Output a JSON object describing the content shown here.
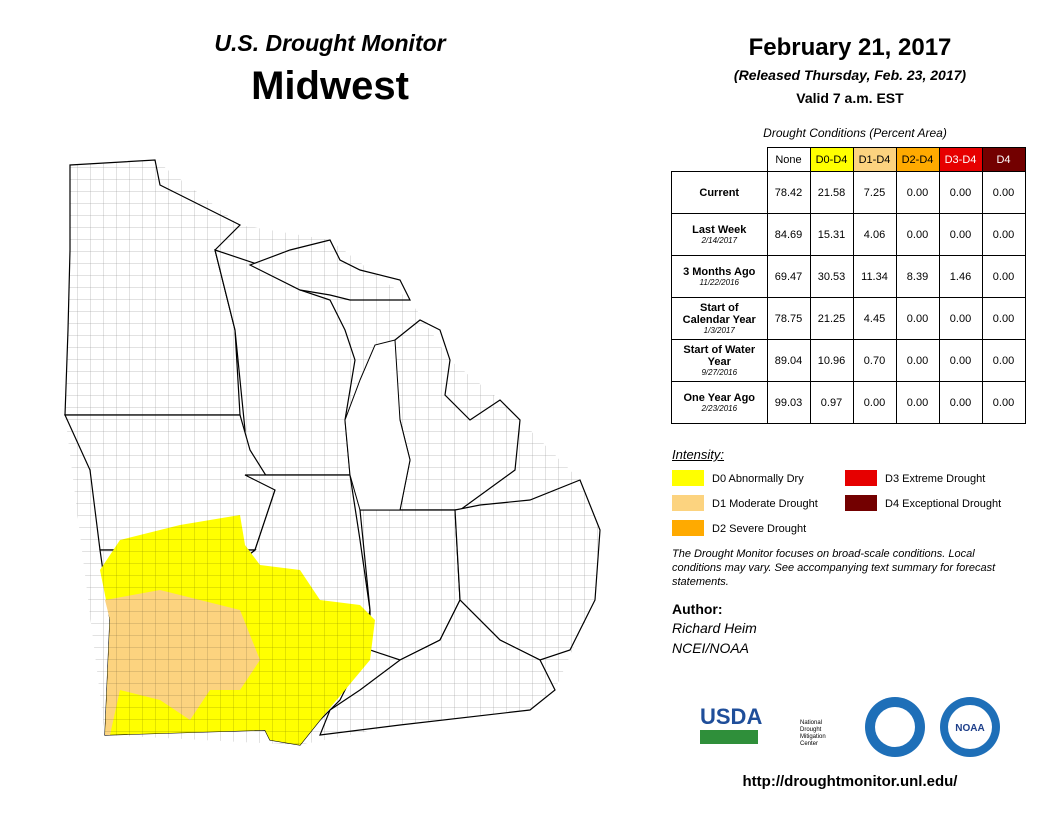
{
  "header": {
    "title": "U.S. Drought Monitor",
    "region": "Midwest",
    "date": "February 21, 2017",
    "released": "(Released Thursday, Feb. 23, 2017)",
    "valid": "Valid  7 a.m. EST"
  },
  "table": {
    "caption": "Drought Conditions (Percent Area)",
    "columns": [
      "None",
      "D0-D4",
      "D1-D4",
      "D2-D4",
      "D3-D4",
      "D4"
    ],
    "column_colors": [
      "#ffffff",
      "#ffff00",
      "#fcd37f",
      "#ffaa00",
      "#e60000",
      "#730000"
    ],
    "rows": [
      {
        "label": "Current",
        "date": null,
        "values": [
          "78.42",
          "21.58",
          "7.25",
          "0.00",
          "0.00",
          "0.00"
        ]
      },
      {
        "label": "Last Week",
        "date": "2/14/2017",
        "values": [
          "84.69",
          "15.31",
          "4.06",
          "0.00",
          "0.00",
          "0.00"
        ]
      },
      {
        "label": "3 Months Ago",
        "date": "11/22/2016",
        "values": [
          "69.47",
          "30.53",
          "11.34",
          "8.39",
          "1.46",
          "0.00"
        ]
      },
      {
        "label": "Start of Calendar Year",
        "date": "1/3/2017",
        "values": [
          "78.75",
          "21.25",
          "4.45",
          "0.00",
          "0.00",
          "0.00"
        ]
      },
      {
        "label": "Start of Water Year",
        "date": "9/27/2016",
        "values": [
          "89.04",
          "10.96",
          "0.70",
          "0.00",
          "0.00",
          "0.00"
        ]
      },
      {
        "label": "One Year Ago",
        "date": "2/23/2016",
        "values": [
          "99.03",
          "0.97",
          "0.00",
          "0.00",
          "0.00",
          "0.00"
        ]
      }
    ]
  },
  "legend": {
    "title": "Intensity:",
    "items": [
      {
        "label": "D0 Abnormally Dry",
        "color": "#ffff00"
      },
      {
        "label": "D1 Moderate Drought",
        "color": "#fcd37f"
      },
      {
        "label": "D2 Severe Drought",
        "color": "#ffaa00"
      },
      {
        "label": "D3 Extreme Drought",
        "color": "#e60000"
      },
      {
        "label": "D4 Exceptional Drought",
        "color": "#730000"
      }
    ]
  },
  "note": "The Drought Monitor focuses on broad-scale conditions. Local conditions may vary. See accompanying text summary for forecast statements.",
  "author": {
    "heading": "Author:",
    "name": "Richard Heim",
    "org": "NCEI/NOAA"
  },
  "logos": {
    "usda": "USDA",
    "ndmc": "National Drought Mitigation Center",
    "noaa": "NOAA"
  },
  "url": "http://droughtmonitor.unl.edu/"
}
